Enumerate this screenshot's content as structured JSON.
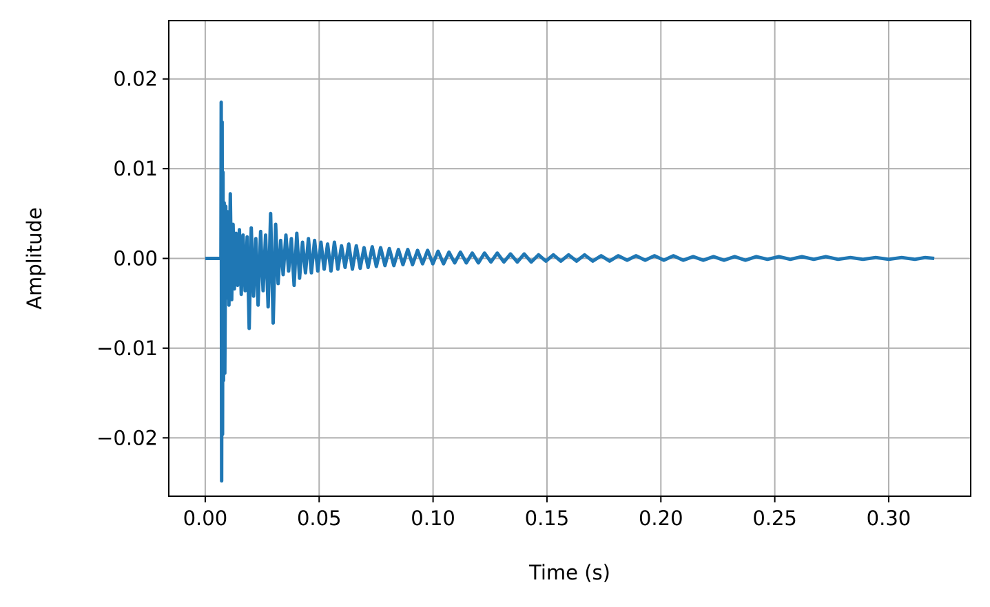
{
  "chart_data": {
    "type": "line",
    "title": "",
    "xlabel": "Time (s)",
    "ylabel": "Amplitude",
    "xlim": [
      -0.016,
      0.336
    ],
    "ylim": [
      -0.0265,
      0.0265
    ],
    "x_ticks": [
      0.0,
      0.05,
      0.1,
      0.15,
      0.2,
      0.25,
      0.3
    ],
    "x_tick_labels": [
      "0.00",
      "0.05",
      "0.10",
      "0.15",
      "0.20",
      "0.25",
      "0.30"
    ],
    "y_ticks": [
      -0.02,
      -0.01,
      0.0,
      0.01,
      0.02
    ],
    "y_tick_labels": [
      "−0.02",
      "−0.01",
      "0.00",
      "0.01",
      "0.02"
    ],
    "grid": true,
    "colors": {
      "series": "#1f77b4",
      "grid": "#b0b0b0",
      "axes": "#000000"
    },
    "series": [
      {
        "x": [
          0.0,
          0.0069,
          0.007,
          0.0072,
          0.0074,
          0.0076,
          0.0078,
          0.008,
          0.0083,
          0.0086,
          0.009,
          0.0094,
          0.0099,
          0.0104,
          0.011,
          0.0116,
          0.0122,
          0.0128,
          0.0135,
          0.0142,
          0.015,
          0.0158,
          0.0166,
          0.0175,
          0.0184,
          0.0193,
          0.0202,
          0.0212,
          0.0222,
          0.0232,
          0.0243,
          0.0254,
          0.0265,
          0.0276,
          0.0287,
          0.0298,
          0.0309,
          0.032,
          0.0331,
          0.0342,
          0.0354,
          0.0366,
          0.0378,
          0.039,
          0.0402,
          0.0414,
          0.0427,
          0.044,
          0.0453,
          0.0466,
          0.048,
          0.0494,
          0.0508,
          0.0522,
          0.0537,
          0.0552,
          0.0567,
          0.0582,
          0.0598,
          0.0614,
          0.063,
          0.0646,
          0.0663,
          0.068,
          0.0697,
          0.0715,
          0.0733,
          0.0751,
          0.077,
          0.0789,
          0.0808,
          0.0828,
          0.0848,
          0.0868,
          0.0889,
          0.091,
          0.0932,
          0.0954,
          0.0976,
          0.0999,
          0.1022,
          0.1046,
          0.107,
          0.1095,
          0.112,
          0.1146,
          0.1172,
          0.1199,
          0.1226,
          0.1254,
          0.1282,
          0.1311,
          0.134,
          0.137,
          0.14,
          0.1431,
          0.1463,
          0.1495,
          0.1528,
          0.1561,
          0.1595,
          0.163,
          0.1665,
          0.1701,
          0.1738,
          0.1775,
          0.1813,
          0.1852,
          0.1891,
          0.1931,
          0.1972,
          0.2013,
          0.2055,
          0.2098,
          0.2142,
          0.2186,
          0.2231,
          0.2277,
          0.2324,
          0.2371,
          0.2419,
          0.2468,
          0.2518,
          0.2568,
          0.2619,
          0.2671,
          0.2724,
          0.2778,
          0.2832,
          0.2887,
          0.2943,
          0.3,
          0.3057,
          0.3115,
          0.316,
          0.32
        ],
        "y": [
          0.0,
          0.0,
          0.0174,
          -0.0248,
          0.0152,
          -0.0196,
          0.0096,
          -0.0136,
          0.0062,
          -0.0128,
          0.0058,
          -0.0044,
          0.0052,
          -0.0052,
          0.0072,
          -0.0046,
          0.0038,
          -0.0034,
          0.0028,
          -0.003,
          0.0032,
          -0.004,
          0.0026,
          -0.0036,
          0.0024,
          -0.0078,
          0.0034,
          -0.0042,
          0.0022,
          -0.0052,
          0.003,
          -0.0036,
          0.0026,
          -0.0054,
          0.005,
          -0.0072,
          0.0038,
          -0.0028,
          0.002,
          -0.0018,
          0.0026,
          -0.0014,
          0.0022,
          -0.003,
          0.0028,
          -0.0022,
          0.0018,
          -0.0016,
          0.0022,
          -0.0016,
          0.002,
          -0.0014,
          0.0018,
          -0.0012,
          0.0016,
          -0.0014,
          0.0018,
          -0.0012,
          0.0014,
          -0.001,
          0.0016,
          -0.0012,
          0.0014,
          -0.0011,
          0.0012,
          -0.001,
          0.0013,
          -0.0009,
          0.0012,
          -0.0008,
          0.0011,
          -0.0008,
          0.001,
          -0.0007,
          0.001,
          -0.0007,
          0.0009,
          -0.0006,
          0.0009,
          -0.0006,
          0.0008,
          -0.0006,
          0.0007,
          -0.0005,
          0.0007,
          -0.0005,
          0.0006,
          -0.0005,
          0.0006,
          -0.0004,
          0.0006,
          -0.0004,
          0.0005,
          -0.0004,
          0.0005,
          -0.0004,
          0.0004,
          -0.0003,
          0.0004,
          -0.0003,
          0.0004,
          -0.0003,
          0.0004,
          -0.0003,
          0.0003,
          -0.0003,
          0.0003,
          -0.0002,
          0.0003,
          -0.0002,
          0.0003,
          -0.0002,
          0.0003,
          -0.0002,
          0.0002,
          -0.0002,
          0.0002,
          -0.0002,
          0.0002,
          -0.0002,
          0.0002,
          -0.0001,
          0.0002,
          -0.0001,
          0.0002,
          -0.0001,
          0.0002,
          -0.0001,
          0.0001,
          -0.0001,
          0.0001,
          -0.0001,
          0.0001,
          -0.0001,
          0.0001,
          0.0
        ]
      }
    ]
  }
}
